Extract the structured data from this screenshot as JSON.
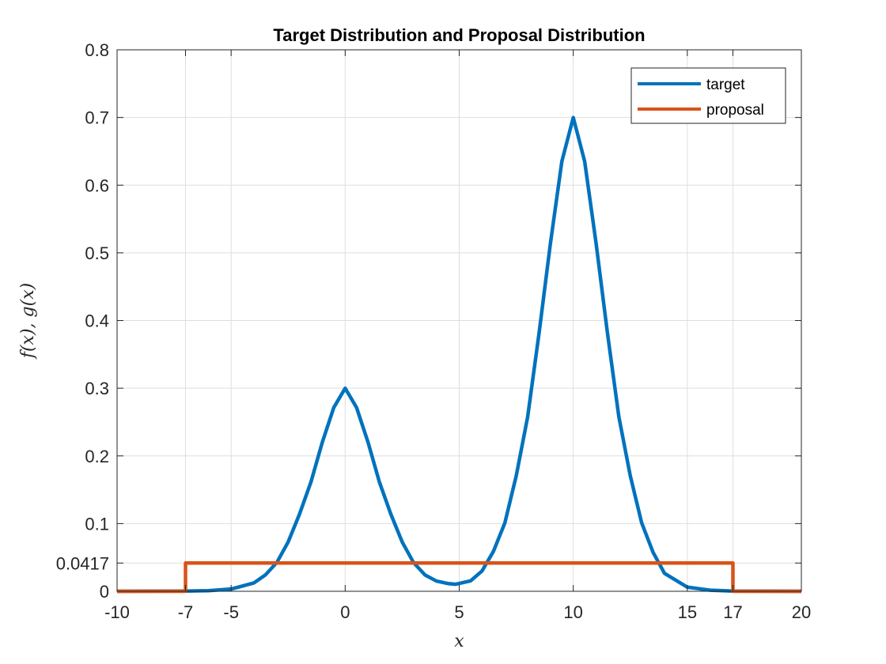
{
  "chart_data": {
    "type": "line",
    "title": "Target Distribution and Proposal Distribution",
    "xlabel": "x",
    "ylabel": "f(x), g(x)",
    "xlim": [
      -10,
      20
    ],
    "ylim": [
      0,
      0.8
    ],
    "xticks": [
      -10,
      -7,
      -5,
      0,
      5,
      10,
      15,
      17,
      20
    ],
    "xtick_labels": [
      "-10",
      "-7",
      "-5",
      "0",
      "5",
      "10",
      "15",
      "17",
      "20"
    ],
    "yticks": [
      0,
      0.0417,
      0.1,
      0.2,
      0.3,
      0.4,
      0.5,
      0.6,
      0.7,
      0.8
    ],
    "ytick_labels": [
      "0",
      "0.0417",
      "0.1",
      "0.2",
      "0.3",
      "0.4",
      "0.5",
      "0.6",
      "0.7",
      "0.8"
    ],
    "grid": true,
    "legend_position": "top-right",
    "series": [
      {
        "name": "target",
        "color": "#0072BD",
        "x": [
          -10,
          -7,
          -6,
          -5,
          -4,
          -3.5,
          -3,
          -2.5,
          -2,
          -1.5,
          -1,
          -0.5,
          0,
          0.5,
          1,
          1.5,
          2,
          2.5,
          3,
          3.5,
          4,
          4.5,
          4.85,
          5.5,
          6,
          6.5,
          7,
          7.5,
          8,
          8.5,
          9,
          9.5,
          10,
          10.5,
          11,
          11.5,
          12,
          12.5,
          13,
          13.5,
          14,
          15,
          16,
          17,
          20
        ],
        "y": [
          0,
          0.0003,
          0.0009,
          0.0033,
          0.0123,
          0.0241,
          0.0423,
          0.0728,
          0.1142,
          0.1614,
          0.2204,
          0.2714,
          0.3,
          0.2714,
          0.2204,
          0.1614,
          0.1142,
          0.0728,
          0.0423,
          0.0241,
          0.0151,
          0.0114,
          0.0104,
          0.0154,
          0.03,
          0.059,
          0.1009,
          0.1706,
          0.2576,
          0.3812,
          0.5143,
          0.6351,
          0.7,
          0.6351,
          0.5143,
          0.3812,
          0.2576,
          0.1706,
          0.1009,
          0.0575,
          0.0265,
          0.0061,
          0.0016,
          0.0003,
          0
        ]
      },
      {
        "name": "proposal",
        "color": "#D95319",
        "x": [
          -10,
          -7,
          -7,
          17,
          17,
          20
        ],
        "y": [
          0,
          0,
          0.0417,
          0.0417,
          0,
          0
        ]
      }
    ]
  }
}
